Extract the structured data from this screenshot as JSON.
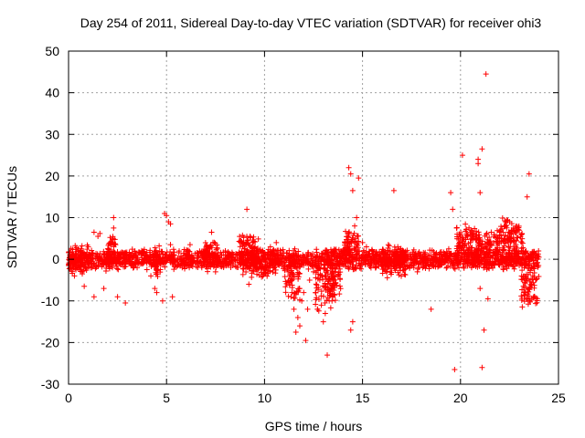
{
  "chart_data": {
    "type": "scatter",
    "title": "Day 254 of 2011, Sidereal Day-to-day VTEC variation (SDTVAR) for receiver ohi3",
    "xlabel": "GPS time / hours",
    "ylabel": "SDTVAR / TECUs",
    "xlim": [
      0,
      25
    ],
    "ylim": [
      -30,
      50
    ],
    "xticks": [
      0,
      5,
      10,
      15,
      20,
      25
    ],
    "yticks": [
      -30,
      -20,
      -10,
      0,
      10,
      20,
      30,
      40,
      50
    ],
    "grid": true,
    "marker": "+",
    "color": "#ff0000",
    "series": [
      {
        "name": "SDTVAR",
        "points": [
          [
            0.0,
            -1.5
          ],
          [
            0.2,
            1.8
          ],
          [
            0.3,
            -4.0
          ],
          [
            0.5,
            2.5
          ],
          [
            0.7,
            -3.5
          ],
          [
            0.8,
            -6.5
          ],
          [
            1.0,
            3.0
          ],
          [
            1.2,
            -2.0
          ],
          [
            1.3,
            6.5
          ],
          [
            1.3,
            -9.0
          ],
          [
            1.5,
            5.5
          ],
          [
            1.6,
            6.2
          ],
          [
            1.8,
            -7.0
          ],
          [
            2.0,
            2.5
          ],
          [
            2.2,
            4.0
          ],
          [
            2.3,
            10.0
          ],
          [
            2.3,
            7.5
          ],
          [
            2.4,
            3.5
          ],
          [
            2.5,
            -9.0
          ],
          [
            2.8,
            -1.8
          ],
          [
            2.9,
            -10.5
          ],
          [
            3.2,
            -1.5
          ],
          [
            3.5,
            -2.0
          ],
          [
            3.8,
            -1.0
          ],
          [
            4.0,
            -2.5
          ],
          [
            4.2,
            -4.0
          ],
          [
            4.4,
            -7.0
          ],
          [
            4.5,
            -8.0
          ],
          [
            4.8,
            -10.0
          ],
          [
            4.9,
            11.0
          ],
          [
            5.0,
            10.5
          ],
          [
            5.1,
            9.0
          ],
          [
            5.2,
            8.5
          ],
          [
            5.3,
            -9.0
          ],
          [
            5.2,
            3.5
          ],
          [
            5.4,
            1.0
          ],
          [
            5.8,
            -2.0
          ],
          [
            6.2,
            -1.0
          ],
          [
            6.2,
            3.5
          ],
          [
            6.8,
            -2.0
          ],
          [
            7.2,
            1.5
          ],
          [
            7.3,
            6.5
          ],
          [
            7.5,
            -3.0
          ],
          [
            7.8,
            1.0
          ],
          [
            8.0,
            2.0
          ],
          [
            8.2,
            -1.0
          ],
          [
            8.6,
            0.0
          ],
          [
            9.0,
            2.5
          ],
          [
            9.1,
            12.0
          ],
          [
            9.2,
            -6.0
          ],
          [
            9.4,
            4.0
          ],
          [
            9.6,
            2.0
          ],
          [
            10.0,
            1.0
          ],
          [
            10.3,
            3.0
          ],
          [
            10.6,
            4.0
          ],
          [
            10.8,
            2.0
          ],
          [
            11.0,
            0.5
          ],
          [
            11.2,
            -3.0
          ],
          [
            11.4,
            -8.0
          ],
          [
            11.5,
            -12.0
          ],
          [
            11.6,
            -17.5
          ],
          [
            11.7,
            -14.0
          ],
          [
            11.8,
            -16.0
          ],
          [
            11.9,
            -10.0
          ],
          [
            12.0,
            -8.0
          ],
          [
            12.1,
            -19.5
          ],
          [
            12.2,
            -12.0
          ],
          [
            12.3,
            -5.0
          ],
          [
            12.5,
            -3.0
          ],
          [
            12.6,
            -8.0
          ],
          [
            12.7,
            -12.0
          ],
          [
            12.9,
            -11.0
          ],
          [
            13.0,
            -15.0
          ],
          [
            13.1,
            -13.0
          ],
          [
            13.2,
            -23.0
          ],
          [
            13.3,
            -10.0
          ],
          [
            13.5,
            -5.0
          ],
          [
            13.7,
            -1.0
          ],
          [
            13.9,
            2.0
          ],
          [
            14.1,
            4.0
          ],
          [
            14.3,
            22.0
          ],
          [
            14.4,
            20.5
          ],
          [
            14.5,
            16.5
          ],
          [
            14.5,
            -15.0
          ],
          [
            14.4,
            -17.0
          ],
          [
            14.6,
            8.0
          ],
          [
            14.7,
            10.0
          ],
          [
            14.8,
            19.5
          ],
          [
            15.0,
            4.0
          ],
          [
            15.2,
            3.0
          ],
          [
            15.5,
            2.0
          ],
          [
            15.8,
            1.0
          ],
          [
            16.0,
            0.0
          ],
          [
            16.3,
            -1.0
          ],
          [
            16.6,
            16.5
          ],
          [
            16.8,
            3.0
          ],
          [
            17.0,
            1.5
          ],
          [
            17.4,
            -2.0
          ],
          [
            17.8,
            -3.0
          ],
          [
            18.2,
            -1.0
          ],
          [
            18.5,
            -12.0
          ],
          [
            18.8,
            0.5
          ],
          [
            19.0,
            1.0
          ],
          [
            19.4,
            2.5
          ],
          [
            19.5,
            16.0
          ],
          [
            19.6,
            12.0
          ],
          [
            19.7,
            -26.5
          ],
          [
            19.8,
            7.5
          ],
          [
            20.0,
            3.0
          ],
          [
            20.1,
            25.0
          ],
          [
            20.3,
            1.0
          ],
          [
            20.5,
            4.0
          ],
          [
            20.7,
            5.0
          ],
          [
            20.9,
            23.0
          ],
          [
            20.9,
            24.0
          ],
          [
            21.0,
            -7.0
          ],
          [
            21.0,
            16.0
          ],
          [
            21.1,
            26.5
          ],
          [
            21.1,
            -26.0
          ],
          [
            21.2,
            -17.0
          ],
          [
            21.3,
            44.5
          ],
          [
            21.4,
            -9.5
          ],
          [
            21.5,
            4.0
          ],
          [
            21.7,
            5.5
          ],
          [
            22.0,
            6.5
          ],
          [
            22.3,
            8.0
          ],
          [
            22.5,
            9.0
          ],
          [
            22.6,
            6.0
          ],
          [
            22.8,
            7.5
          ],
          [
            23.0,
            7.0
          ],
          [
            23.2,
            2.0
          ],
          [
            23.3,
            -8.0
          ],
          [
            23.4,
            15.0
          ],
          [
            23.5,
            20.5
          ],
          [
            23.6,
            -2.0
          ],
          [
            23.8,
            1.0
          ],
          [
            24.0,
            0.5
          ]
        ],
        "bands": [
          [
            0.0,
            24.0,
            0.0,
            2.6
          ],
          [
            0.0,
            1.0,
            0.0,
            4.0
          ],
          [
            1.9,
            2.5,
            1.8,
            5.5
          ],
          [
            4.3,
            4.7,
            -0.5,
            4.0
          ],
          [
            6.9,
            7.6,
            1.0,
            4.5
          ],
          [
            8.7,
            9.7,
            1.5,
            5.5
          ],
          [
            9.3,
            10.6,
            -1.0,
            4.0
          ],
          [
            11.0,
            11.8,
            -4.0,
            6.5
          ],
          [
            12.6,
            13.6,
            -5.5,
            7.5
          ],
          [
            13.2,
            13.9,
            -3.0,
            7.0
          ],
          [
            14.0,
            14.8,
            3.0,
            4.5
          ],
          [
            16.0,
            17.2,
            -0.5,
            4.5
          ],
          [
            19.8,
            20.8,
            4.0,
            5.0
          ],
          [
            20.8,
            22.0,
            3.0,
            4.5
          ],
          [
            22.0,
            23.2,
            4.5,
            6.0
          ],
          [
            23.1,
            24.0,
            -6.0,
            6.5
          ]
        ]
      }
    ]
  }
}
